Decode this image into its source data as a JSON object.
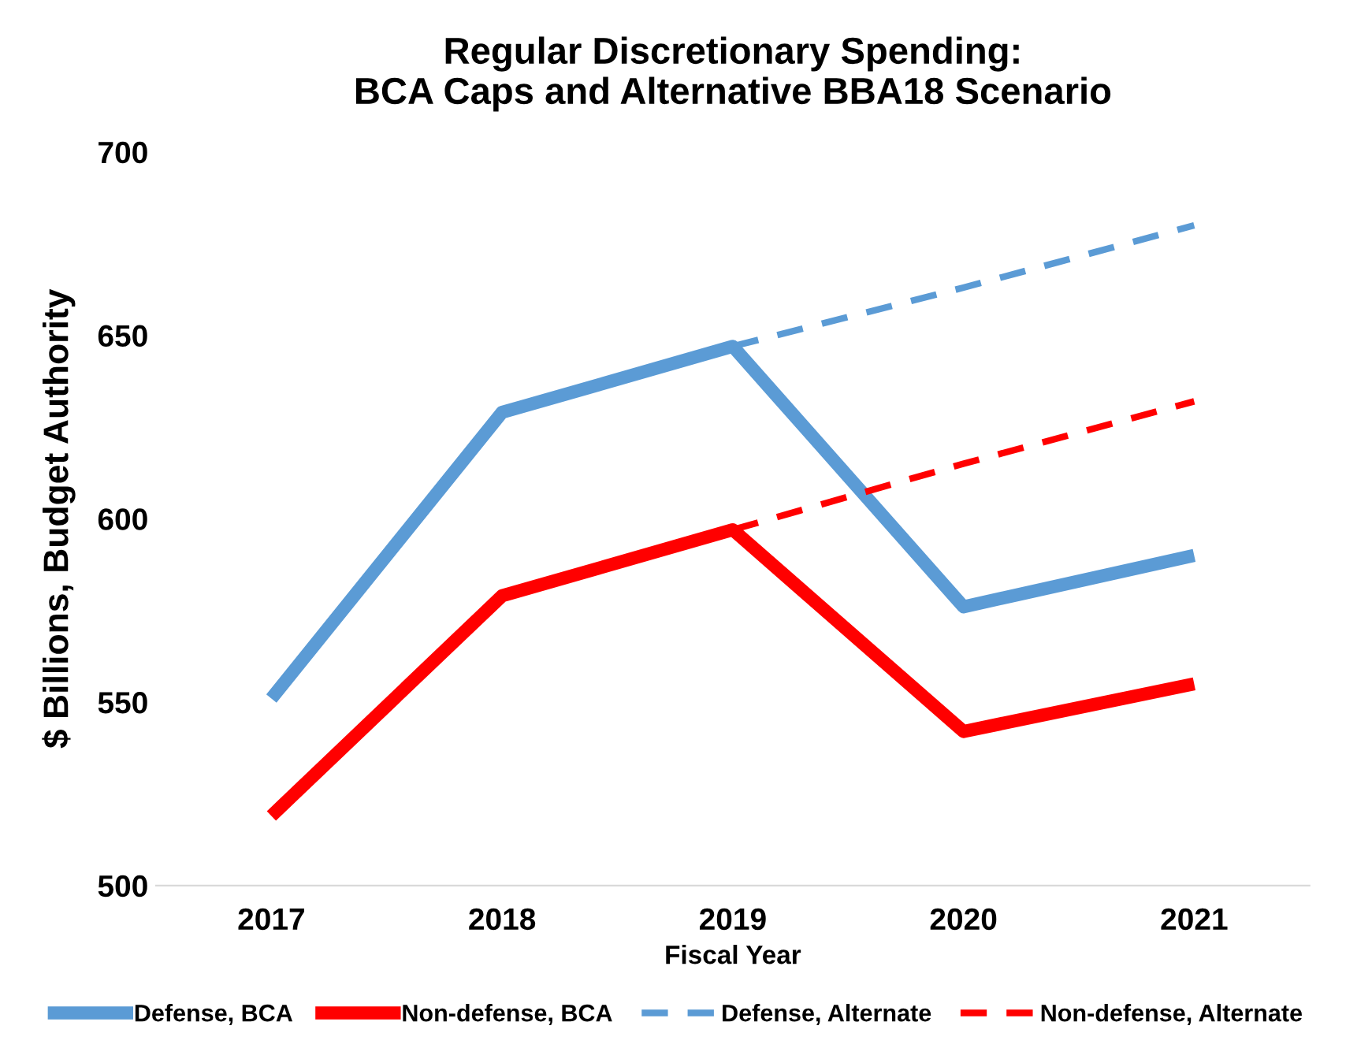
{
  "chart_data": {
    "type": "line",
    "title": "Regular Discretionary Spending:\nBCA Caps and Alternative BBA18 Scenario",
    "xlabel": "Fiscal Year",
    "ylabel": "$ Billions, Budget Authority",
    "categories": [
      "2017",
      "2018",
      "2019",
      "2020",
      "2021"
    ],
    "series": [
      {
        "name": "Defense, BCA",
        "color": "#5b9bd5",
        "line_style": "solid",
        "values": [
          551,
          629,
          647,
          576,
          590
        ]
      },
      {
        "name": "Non-defense, BCA",
        "color": "#ff0000",
        "line_style": "solid",
        "values": [
          519,
          579,
          597,
          542,
          555
        ]
      },
      {
        "name": "Defense, Alternate",
        "color": "#5b9bd5",
        "line_style": "dashed",
        "values": [
          null,
          null,
          647,
          663,
          680
        ]
      },
      {
        "name": "Non-defense, Alternate",
        "color": "#ff0000",
        "line_style": "dashed",
        "values": [
          null,
          null,
          597,
          615,
          632
        ]
      }
    ],
    "ylim": [
      500,
      700
    ],
    "yticks": [
      500,
      550,
      600,
      650,
      700
    ],
    "grid": false,
    "legend": "bottom",
    "marker": "none"
  }
}
